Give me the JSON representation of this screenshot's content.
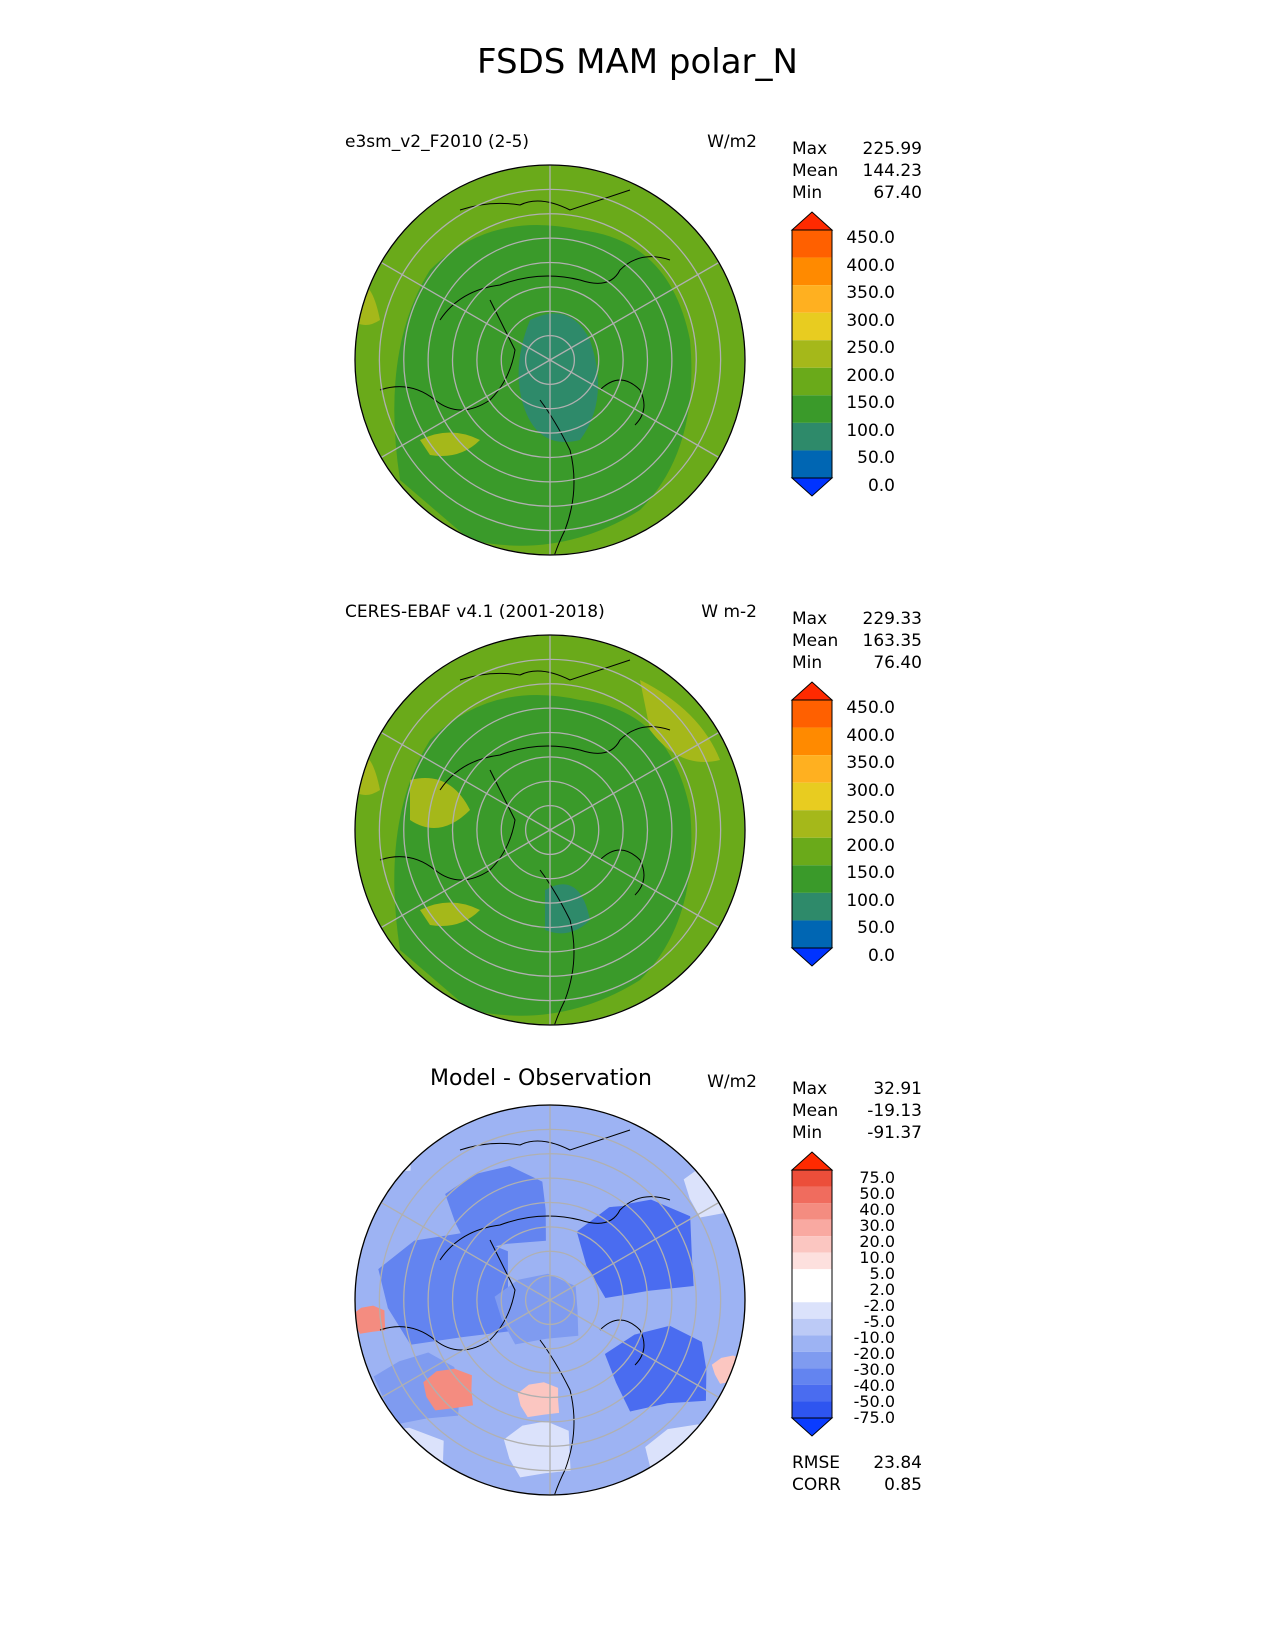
{
  "title": "FSDS MAM polar_N",
  "panels": [
    {
      "subtitle": "e3sm_v2_F2010 (2-5)",
      "units": "W/m2",
      "stats": [
        {
          "label": "Max",
          "value": "225.99"
        },
        {
          "label": "Mean",
          "value": "144.23"
        },
        {
          "label": "Min",
          "value": "67.40"
        }
      ],
      "colorbar_ticks": [
        "450.0",
        "400.0",
        "350.0",
        "300.0",
        "250.0",
        "200.0",
        "150.0",
        "100.0",
        "50.0",
        "0.0"
      ]
    },
    {
      "subtitle": "CERES-EBAF v4.1 (2001-2018)",
      "units": "W m-2",
      "stats": [
        {
          "label": "Max",
          "value": "229.33"
        },
        {
          "label": "Mean",
          "value": "163.35"
        },
        {
          "label": "Min",
          "value": "76.40"
        }
      ],
      "colorbar_ticks": [
        "450.0",
        "400.0",
        "350.0",
        "300.0",
        "250.0",
        "200.0",
        "150.0",
        "100.0",
        "50.0",
        "0.0"
      ]
    },
    {
      "subtitle": "Model - Observation",
      "units": "W/m2",
      "stats": [
        {
          "label": "Max",
          "value": "32.91"
        },
        {
          "label": "Mean",
          "value": "-19.13"
        },
        {
          "label": "Min",
          "value": "-91.37"
        }
      ],
      "colorbar_ticks": [
        "75.0",
        "50.0",
        "40.0",
        "30.0",
        "20.0",
        "10.0",
        "5.0",
        "2.0",
        "-2.0",
        "-5.0",
        "-10.0",
        "-20.0",
        "-30.0",
        "-40.0",
        "-50.0",
        "-75.0"
      ],
      "footer": [
        {
          "label": "RMSE",
          "value": "23.84"
        },
        {
          "label": "CORR",
          "value": "0.85"
        }
      ]
    }
  ],
  "colors": {
    "abs_scale": [
      "#0033ff",
      "#0066b3",
      "#2e8a6a",
      "#3a9a2a",
      "#6aaa1a",
      "#a5b81a",
      "#e8cc20",
      "#ffb020",
      "#ff8a00",
      "#ff6000",
      "#ff2a00"
    ],
    "diff_scale": [
      "#0a3cff",
      "#2e55f0",
      "#4a6cf0",
      "#6384f0",
      "#7f9bf0",
      "#9db3f3",
      "#bccaf6",
      "#dbe2fb",
      "#ffffff",
      "#fde0de",
      "#fbc6c1",
      "#f9a9a1",
      "#f48c80",
      "#f06c5e",
      "#ec4e3a",
      "#ff2a00"
    ]
  }
}
